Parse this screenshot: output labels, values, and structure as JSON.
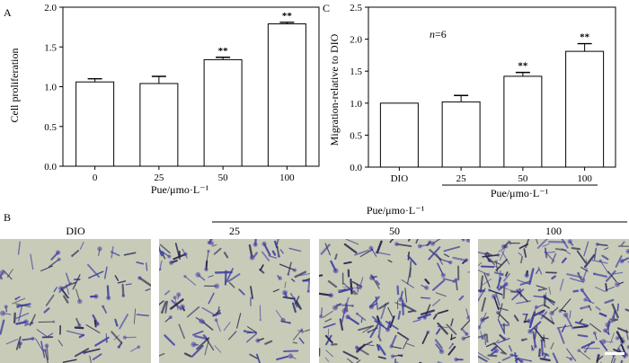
{
  "panels": {
    "A": {
      "letter": "A"
    },
    "B": {
      "letter": "B"
    },
    "C": {
      "letter": "C"
    }
  },
  "chart_data": [
    {
      "panel": "A",
      "type": "bar",
      "ylabel": "Cell proliferation",
      "xlabel": "Pue/μmo·L⁻¹",
      "categories": [
        "0",
        "25",
        "50",
        "100"
      ],
      "values": [
        1.06,
        1.04,
        1.34,
        1.79
      ],
      "errors": [
        0.04,
        0.09,
        0.03,
        0.02
      ],
      "significance": [
        "",
        "",
        "**",
        "**"
      ],
      "ylim": [
        0,
        2.0
      ],
      "yticks": [
        "0.0",
        "0.5",
        "1.0",
        "1.5",
        "2.0"
      ],
      "bar_color": "#ffffff",
      "grid": false
    },
    {
      "panel": "C",
      "type": "bar",
      "ylabel": "Migration-relative to DIO",
      "annotation_italic": "n",
      "annotation_rest": "=6",
      "categories": [
        "DIO",
        "25",
        "50",
        "100"
      ],
      "group_label": "Pue/μmo·L⁻¹",
      "values": [
        1.0,
        1.02,
        1.42,
        1.81
      ],
      "errors": [
        0.0,
        0.1,
        0.06,
        0.12
      ],
      "significance": [
        "",
        "",
        "**",
        "**"
      ],
      "ylim": [
        0,
        2.5
      ],
      "yticks": [
        "0.0",
        "0.5",
        "1.0",
        "1.5",
        "2.0",
        "2.5"
      ],
      "bar_color": "#ffffff",
      "grid": false
    }
  ],
  "micrographs": {
    "group_label": "Pue/μmo·L⁻¹",
    "labels": [
      "DIO",
      "25",
      "50",
      "100"
    ],
    "densities": [
      0.35,
      0.45,
      0.6,
      0.85
    ],
    "background_color": "#c8cbb8",
    "stain_color": "#3a3da0"
  }
}
